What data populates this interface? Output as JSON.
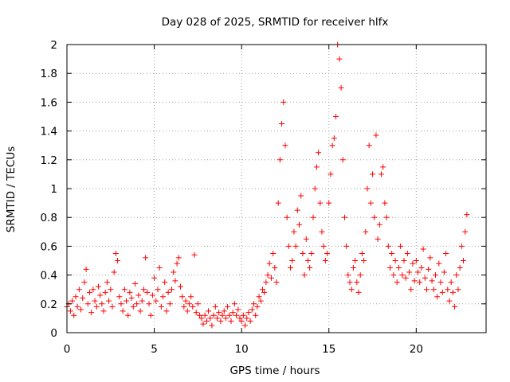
{
  "chart_data": {
    "type": "scatter",
    "title": "Day 028 of 2025, SRMTID for receiver hlfx",
    "xlabel": "GPS time / hours",
    "ylabel": "SRMTID / TECUs",
    "xlim": [
      0,
      24
    ],
    "ylim": [
      0,
      2
    ],
    "xticks": [
      0,
      5,
      10,
      15,
      20
    ],
    "yticks": [
      0,
      0.2,
      0.4,
      0.6,
      0.8,
      1,
      1.2,
      1.4,
      1.6,
      1.8,
      2
    ],
    "xtick_labels": [
      "0",
      "5",
      "10",
      "15",
      "20"
    ],
    "ytick_labels": [
      "0",
      "0.2",
      "0.4",
      "0.6",
      "0.8",
      "1",
      "1.2",
      "1.4",
      "1.6",
      "1.8",
      "2"
    ],
    "grid": true,
    "marker": "+",
    "color": "#ff0000",
    "series": [
      {
        "name": "SRMTID",
        "points": [
          [
            0.0,
            0.18
          ],
          [
            0.1,
            0.2
          ],
          [
            0.2,
            0.15
          ],
          [
            0.3,
            0.22
          ],
          [
            0.4,
            0.12
          ],
          [
            0.5,
            0.25
          ],
          [
            0.6,
            0.18
          ],
          [
            0.7,
            0.3
          ],
          [
            0.8,
            0.16
          ],
          [
            0.9,
            0.24
          ],
          [
            1.0,
            0.35
          ],
          [
            1.1,
            0.44
          ],
          [
            1.2,
            0.2
          ],
          [
            1.3,
            0.28
          ],
          [
            1.4,
            0.14
          ],
          [
            1.5,
            0.3
          ],
          [
            1.6,
            0.22
          ],
          [
            1.7,
            0.18
          ],
          [
            1.8,
            0.32
          ],
          [
            1.9,
            0.26
          ],
          [
            2.0,
            0.2
          ],
          [
            2.1,
            0.15
          ],
          [
            2.2,
            0.28
          ],
          [
            2.3,
            0.35
          ],
          [
            2.4,
            0.22
          ],
          [
            2.5,
            0.3
          ],
          [
            2.6,
            0.18
          ],
          [
            2.7,
            0.42
          ],
          [
            2.8,
            0.55
          ],
          [
            2.9,
            0.5
          ],
          [
            3.0,
            0.25
          ],
          [
            3.1,
            0.2
          ],
          [
            3.2,
            0.15
          ],
          [
            3.3,
            0.3
          ],
          [
            3.4,
            0.22
          ],
          [
            3.5,
            0.12
          ],
          [
            3.6,
            0.28
          ],
          [
            3.7,
            0.24
          ],
          [
            3.8,
            0.18
          ],
          [
            3.9,
            0.34
          ],
          [
            4.0,
            0.2
          ],
          [
            4.1,
            0.26
          ],
          [
            4.2,
            0.15
          ],
          [
            4.3,
            0.22
          ],
          [
            4.4,
            0.3
          ],
          [
            4.5,
            0.52
          ],
          [
            4.6,
            0.28
          ],
          [
            4.7,
            0.2
          ],
          [
            4.8,
            0.12
          ],
          [
            4.9,
            0.26
          ],
          [
            5.0,
            0.38
          ],
          [
            5.1,
            0.22
          ],
          [
            5.2,
            0.3
          ],
          [
            5.3,
            0.45
          ],
          [
            5.4,
            0.18
          ],
          [
            5.5,
            0.25
          ],
          [
            5.6,
            0.35
          ],
          [
            5.7,
            0.15
          ],
          [
            5.8,
            0.28
          ],
          [
            5.9,
            0.2
          ],
          [
            6.0,
            0.3
          ],
          [
            6.1,
            0.42
          ],
          [
            6.2,
            0.36
          ],
          [
            6.3,
            0.48
          ],
          [
            6.4,
            0.52
          ],
          [
            6.5,
            0.32
          ],
          [
            6.6,
            0.25
          ],
          [
            6.7,
            0.18
          ],
          [
            6.8,
            0.22
          ],
          [
            6.9,
            0.15
          ],
          [
            7.0,
            0.2
          ],
          [
            7.1,
            0.25
          ],
          [
            7.2,
            0.18
          ],
          [
            7.3,
            0.54
          ],
          [
            7.4,
            0.14
          ],
          [
            7.5,
            0.2
          ],
          [
            7.6,
            0.12
          ],
          [
            7.7,
            0.1
          ],
          [
            7.8,
            0.06
          ],
          [
            7.9,
            0.12
          ],
          [
            8.0,
            0.08
          ],
          [
            8.1,
            0.15
          ],
          [
            8.2,
            0.1
          ],
          [
            8.3,
            0.05
          ],
          [
            8.4,
            0.12
          ],
          [
            8.5,
            0.18
          ],
          [
            8.6,
            0.1
          ],
          [
            8.7,
            0.14
          ],
          [
            8.8,
            0.08
          ],
          [
            8.9,
            0.12
          ],
          [
            9.0,
            0.15
          ],
          [
            9.1,
            0.1
          ],
          [
            9.2,
            0.18
          ],
          [
            9.3,
            0.12
          ],
          [
            9.4,
            0.08
          ],
          [
            9.5,
            0.14
          ],
          [
            9.6,
            0.2
          ],
          [
            9.7,
            0.12
          ],
          [
            9.8,
            0.16
          ],
          [
            9.9,
            0.1
          ],
          [
            10.0,
            0.08
          ],
          [
            10.1,
            0.12
          ],
          [
            10.2,
            0.05
          ],
          [
            10.3,
            0.1
          ],
          [
            10.4,
            0.14
          ],
          [
            10.5,
            0.08
          ],
          [
            10.6,
            0.16
          ],
          [
            10.7,
            0.2
          ],
          [
            10.8,
            0.12
          ],
          [
            10.9,
            0.18
          ],
          [
            11.0,
            0.25
          ],
          [
            11.1,
            0.22
          ],
          [
            11.2,
            0.3
          ],
          [
            11.3,
            0.28
          ],
          [
            11.4,
            0.35
          ],
          [
            11.5,
            0.4
          ],
          [
            11.6,
            0.48
          ],
          [
            11.7,
            0.38
          ],
          [
            11.8,
            0.55
          ],
          [
            11.9,
            0.45
          ],
          [
            12.0,
            0.35
          ],
          [
            12.1,
            0.9
          ],
          [
            12.2,
            1.2
          ],
          [
            12.3,
            1.45
          ],
          [
            12.4,
            1.6
          ],
          [
            12.5,
            1.3
          ],
          [
            12.6,
            0.8
          ],
          [
            12.7,
            0.6
          ],
          [
            12.8,
            0.45
          ],
          [
            12.9,
            0.5
          ],
          [
            13.0,
            0.7
          ],
          [
            13.1,
            0.6
          ],
          [
            13.2,
            0.85
          ],
          [
            13.3,
            0.75
          ],
          [
            13.4,
            0.95
          ],
          [
            13.5,
            0.55
          ],
          [
            13.6,
            0.4
          ],
          [
            13.7,
            0.65
          ],
          [
            13.8,
            0.5
          ],
          [
            13.9,
            0.45
          ],
          [
            14.0,
            0.55
          ],
          [
            14.1,
            0.8
          ],
          [
            14.2,
            1.0
          ],
          [
            14.3,
            1.15
          ],
          [
            14.4,
            1.25
          ],
          [
            14.5,
            0.9
          ],
          [
            14.6,
            0.7
          ],
          [
            14.7,
            0.6
          ],
          [
            14.8,
            0.5
          ],
          [
            14.9,
            0.55
          ],
          [
            15.0,
            0.9
          ],
          [
            15.1,
            1.1
          ],
          [
            15.2,
            1.3
          ],
          [
            15.3,
            1.35
          ],
          [
            15.4,
            1.5
          ],
          [
            15.5,
            2.0
          ],
          [
            15.6,
            1.9
          ],
          [
            15.7,
            1.7
          ],
          [
            15.8,
            1.2
          ],
          [
            15.9,
            0.8
          ],
          [
            16.0,
            0.6
          ],
          [
            16.1,
            0.4
          ],
          [
            16.2,
            0.35
          ],
          [
            16.3,
            0.3
          ],
          [
            16.4,
            0.45
          ],
          [
            16.5,
            0.5
          ],
          [
            16.6,
            0.35
          ],
          [
            16.7,
            0.28
          ],
          [
            16.8,
            0.4
          ],
          [
            16.9,
            0.55
          ],
          [
            17.0,
            0.5
          ],
          [
            17.1,
            0.7
          ],
          [
            17.2,
            1.0
          ],
          [
            17.3,
            1.3
          ],
          [
            17.4,
            0.9
          ],
          [
            17.5,
            1.1
          ],
          [
            17.6,
            0.8
          ],
          [
            17.7,
            1.37
          ],
          [
            17.8,
            0.65
          ],
          [
            17.9,
            0.75
          ],
          [
            18.0,
            1.1
          ],
          [
            18.1,
            1.15
          ],
          [
            18.2,
            0.9
          ],
          [
            18.3,
            0.8
          ],
          [
            18.4,
            0.6
          ],
          [
            18.5,
            0.45
          ],
          [
            18.6,
            0.55
          ],
          [
            18.7,
            0.4
          ],
          [
            18.8,
            0.5
          ],
          [
            18.9,
            0.35
          ],
          [
            19.0,
            0.45
          ],
          [
            19.1,
            0.6
          ],
          [
            19.2,
            0.4
          ],
          [
            19.3,
            0.5
          ],
          [
            19.4,
            0.38
          ],
          [
            19.5,
            0.55
          ],
          [
            19.6,
            0.42
          ],
          [
            19.7,
            0.3
          ],
          [
            19.8,
            0.48
          ],
          [
            19.9,
            0.36
          ],
          [
            20.0,
            0.5
          ],
          [
            20.1,
            0.42
          ],
          [
            20.2,
            0.35
          ],
          [
            20.3,
            0.45
          ],
          [
            20.4,
            0.58
          ],
          [
            20.5,
            0.38
          ],
          [
            20.6,
            0.3
          ],
          [
            20.7,
            0.44
          ],
          [
            20.8,
            0.52
          ],
          [
            20.9,
            0.36
          ],
          [
            21.0,
            0.3
          ],
          [
            21.1,
            0.4
          ],
          [
            21.2,
            0.25
          ],
          [
            21.3,
            0.48
          ],
          [
            21.4,
            0.35
          ],
          [
            21.5,
            0.28
          ],
          [
            21.6,
            0.42
          ],
          [
            21.7,
            0.55
          ],
          [
            21.8,
            0.3
          ],
          [
            21.9,
            0.22
          ],
          [
            22.0,
            0.35
          ],
          [
            22.1,
            0.28
          ],
          [
            22.2,
            0.18
          ],
          [
            22.3,
            0.4
          ],
          [
            22.4,
            0.3
          ],
          [
            22.5,
            0.45
          ],
          [
            22.6,
            0.6
          ],
          [
            22.7,
            0.5
          ],
          [
            22.8,
            0.7
          ],
          [
            22.9,
            0.82
          ]
        ]
      }
    ]
  }
}
